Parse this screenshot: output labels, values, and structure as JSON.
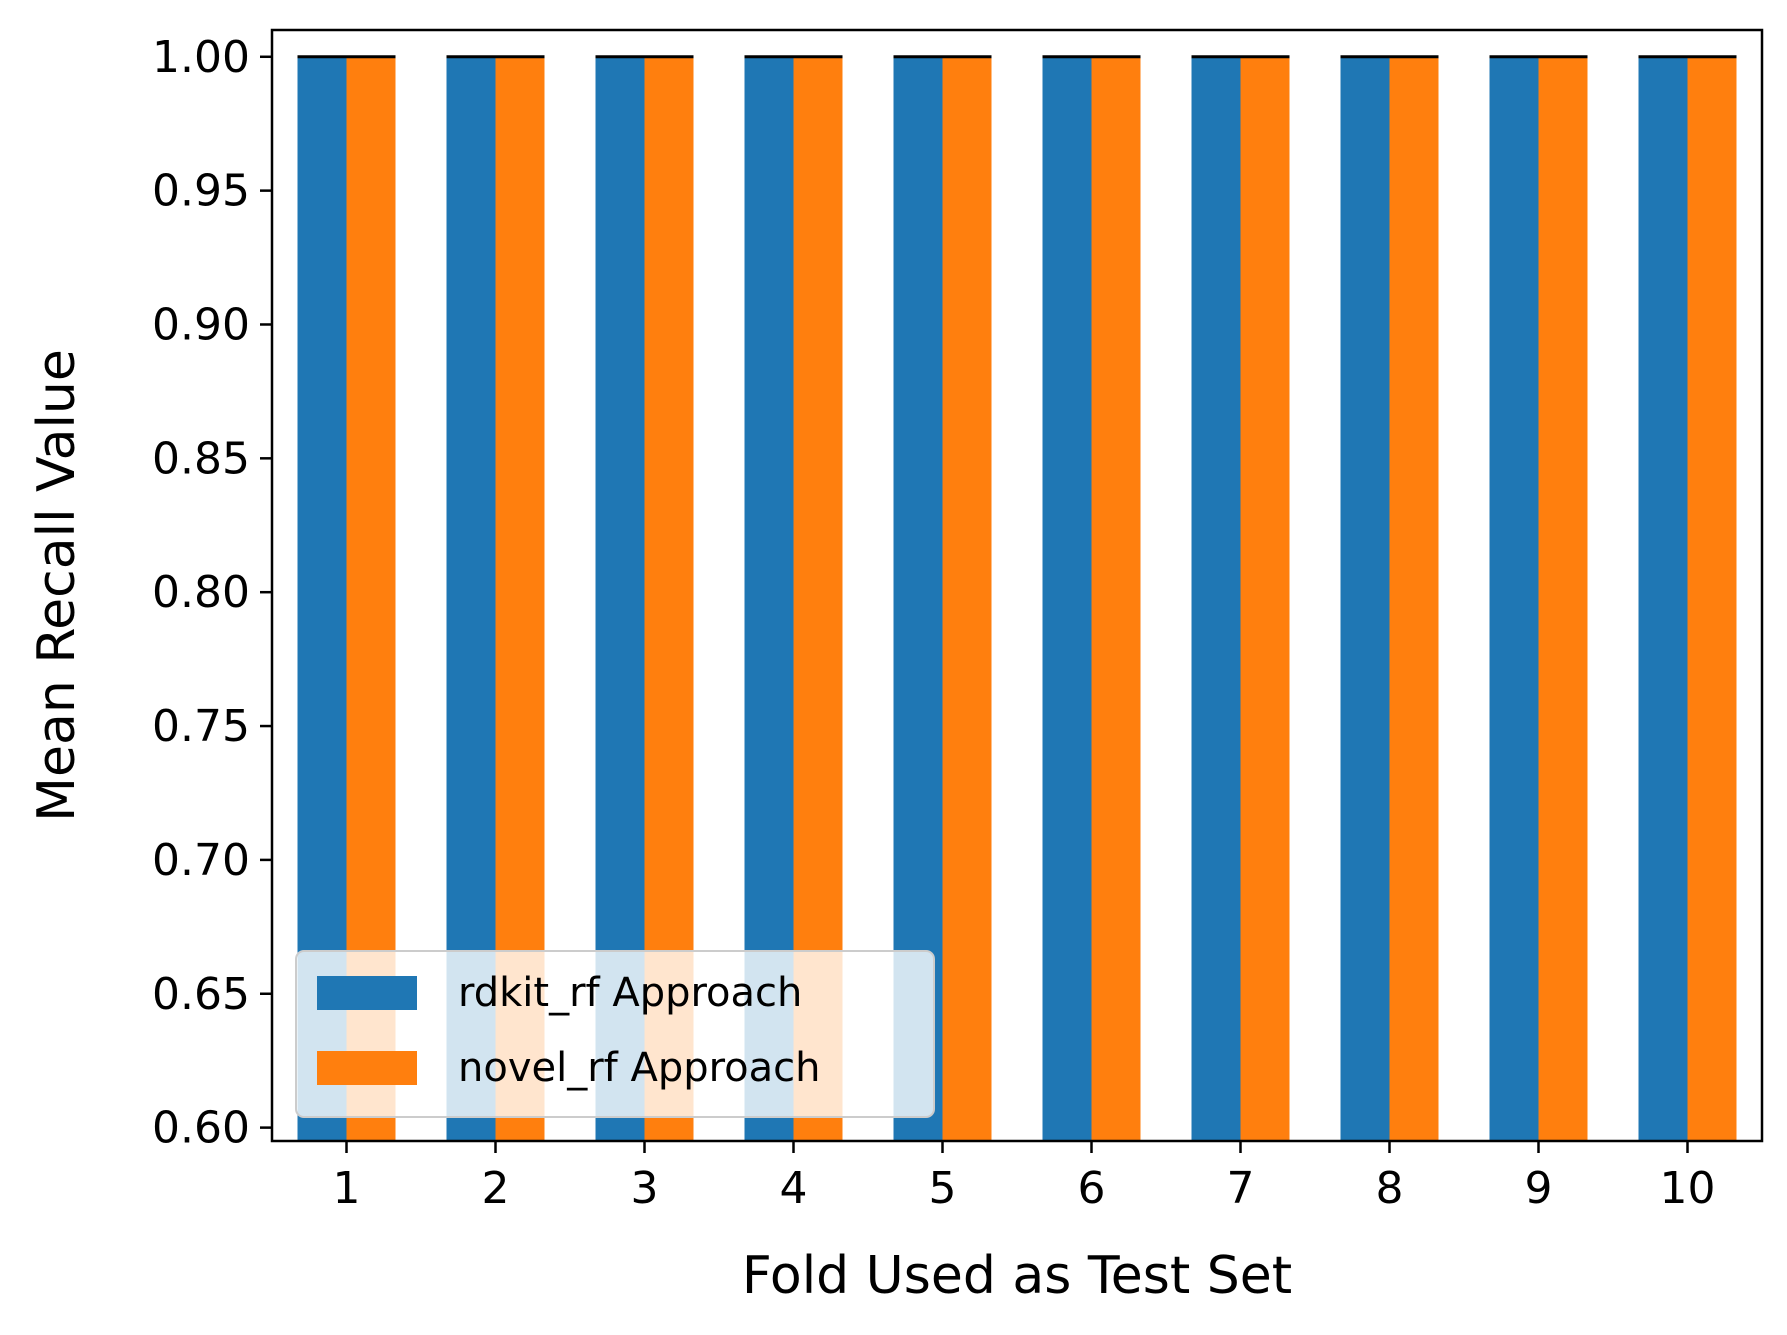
{
  "chart_data": {
    "type": "bar",
    "title": "",
    "xlabel": "Fold Used as Test Set",
    "ylabel": "Mean Recall Value",
    "categories": [
      "1",
      "2",
      "3",
      "4",
      "5",
      "6",
      "7",
      "8",
      "9",
      "10"
    ],
    "series": [
      {
        "name": "rdkit_rf Approach",
        "color": "#1f77b4",
        "values": [
          1.0,
          1.0,
          1.0,
          1.0,
          1.0,
          1.0,
          1.0,
          1.0,
          1.0,
          1.0
        ]
      },
      {
        "name": "novel_rf Approach",
        "color": "#ff7f0e",
        "values": [
          1.0,
          1.0,
          1.0,
          1.0,
          1.0,
          1.0,
          1.0,
          1.0,
          1.0,
          1.0
        ]
      }
    ],
    "error_bars": true,
    "ylim": [
      0.595,
      1.01
    ],
    "yticks": [
      "0.60",
      "0.65",
      "0.70",
      "0.75",
      "0.80",
      "0.85",
      "0.90",
      "0.95",
      "1.00"
    ],
    "legend_position": "lower left",
    "grid": false
  }
}
